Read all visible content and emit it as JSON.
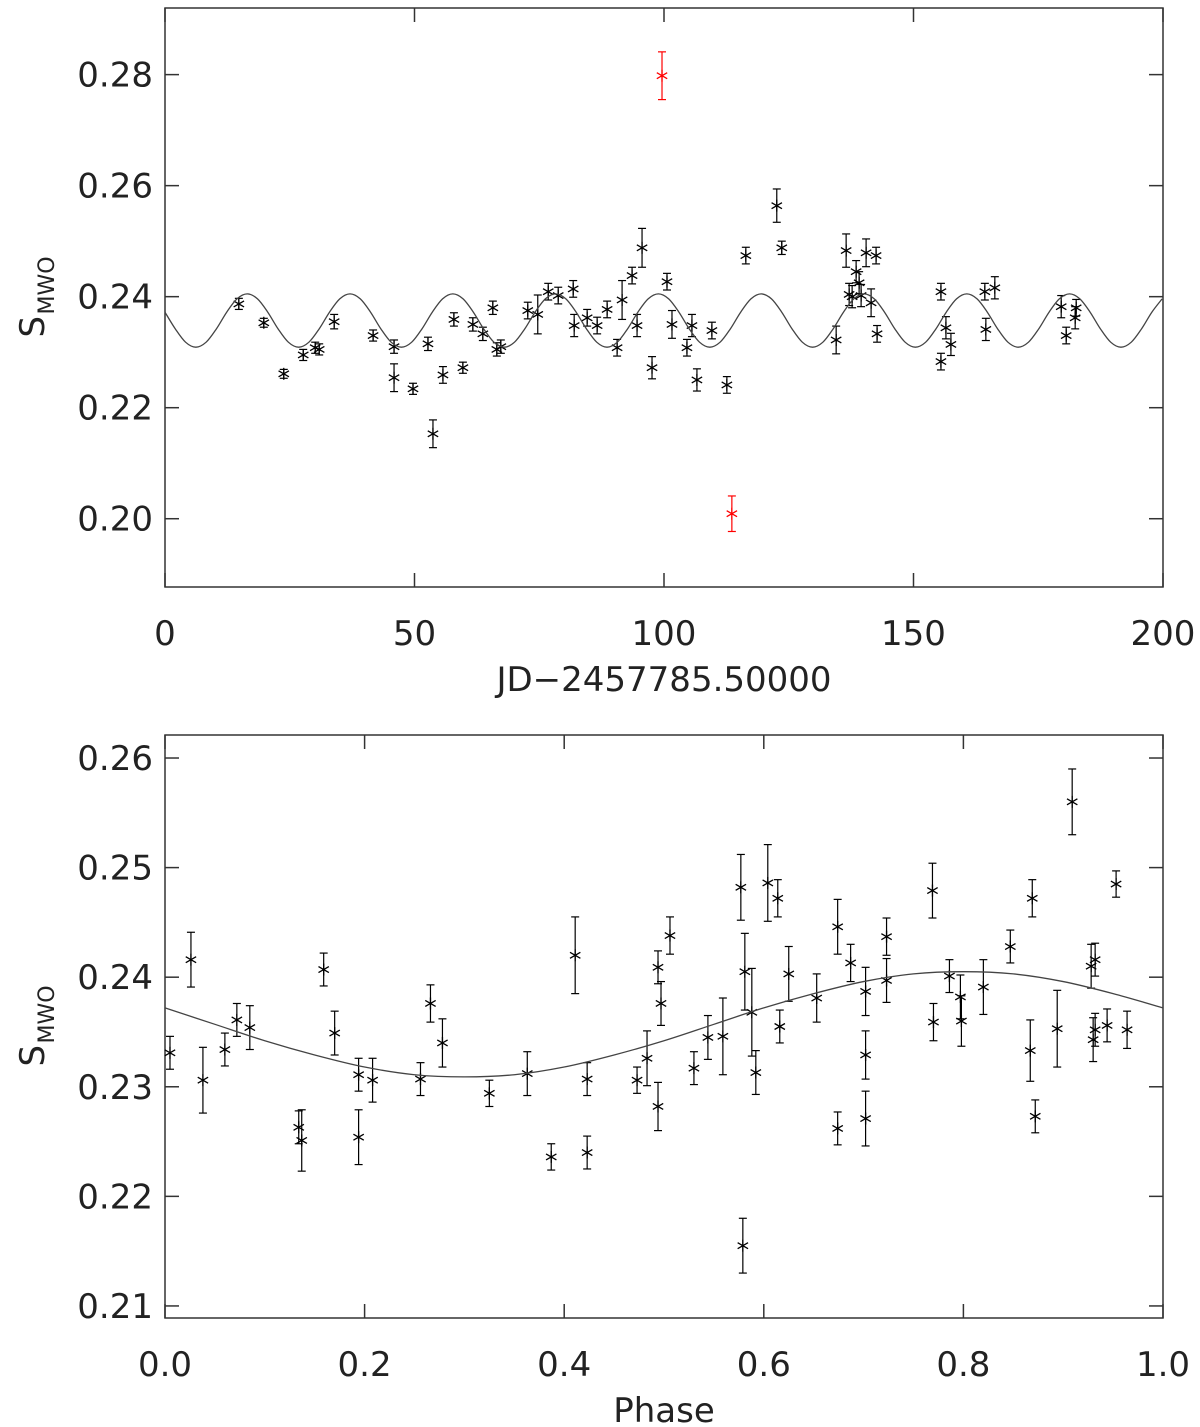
{
  "chart_data": [
    {
      "type": "scatter",
      "xlabel": "JD−2457785.50000",
      "ylabel": "S",
      "ylabel_subscript": "MWO",
      "xlim": [
        0,
        200
      ],
      "xticks": [
        0,
        50,
        100,
        150,
        200
      ],
      "ylim": [
        0.1877,
        0.292
      ],
      "yticks": [
        {
          "value": 0.2,
          "label": "0.20"
        },
        0.22,
        0.24,
        0.26,
        0.28
      ],
      "series": [
        {
          "type": "scatter",
          "color": "#000000",
          "x": [
            14.8,
            19.8,
            23.8,
            27.7,
            30.1,
            30.9,
            33.9,
            41.7,
            45.9,
            45.9,
            49.7,
            52.7,
            53.7,
            55.7,
            57.9,
            59.7,
            61.7,
            63.7,
            65.7,
            66.5,
            67.3,
            72.7,
            74.7,
            76.8,
            78.8,
            81.8,
            82.0,
            84.6,
            86.6,
            88.6,
            90.6,
            91.6,
            93.6,
            94.6,
            95.6,
            97.6,
            100.6,
            101.6,
            104.6,
            105.6,
            106.6,
            109.6,
            112.6,
            116.4,
            122.6,
            123.6,
            134.5,
            136.5,
            137.1,
            137.7,
            138.5,
            139.1,
            139.5,
            140.5,
            141.5,
            142.5,
            142.7,
            155.5,
            155.5,
            156.5,
            157.5,
            164.3,
            164.5,
            166.3,
            179.6,
            180.6,
            182.4,
            182.6
          ],
          "values": [
            0.2387,
            0.2353,
            0.2261,
            0.2295,
            0.2308,
            0.2305,
            0.2355,
            0.233,
            0.231,
            0.2254,
            0.2234,
            0.2315,
            0.2153,
            0.2259,
            0.2359,
            0.2272,
            0.235,
            0.2333,
            0.238,
            0.2305,
            0.231,
            0.2375,
            0.2368,
            0.2409,
            0.2402,
            0.2414,
            0.2348,
            0.2362,
            0.2348,
            0.2377,
            0.2308,
            0.2394,
            0.2438,
            0.2348,
            0.2488,
            0.2272,
            0.2427,
            0.235,
            0.2308,
            0.2348,
            0.225,
            0.2339,
            0.2241,
            0.2474,
            0.2564,
            0.2488,
            0.2322,
            0.2483,
            0.2404,
            0.24,
            0.2445,
            0.2425,
            0.2402,
            0.2479,
            0.2389,
            0.2474,
            0.2333,
            0.2409,
            0.2283,
            0.2344,
            0.2314,
            0.2409,
            0.2341,
            0.2416,
            0.2382,
            0.233,
            0.2362,
            0.238
          ],
          "errors": [
            0.001,
            0.0008,
            0.0008,
            0.001,
            0.001,
            0.001,
            0.0013,
            0.001,
            0.0012,
            0.0025,
            0.001,
            0.0012,
            0.0025,
            0.0015,
            0.0012,
            0.001,
            0.0012,
            0.0012,
            0.0012,
            0.0012,
            0.0012,
            0.0015,
            0.0035,
            0.0015,
            0.0015,
            0.0015,
            0.002,
            0.0015,
            0.0015,
            0.0015,
            0.0015,
            0.0035,
            0.0015,
            0.002,
            0.0035,
            0.002,
            0.0015,
            0.0025,
            0.0015,
            0.002,
            0.002,
            0.0015,
            0.0015,
            0.0015,
            0.003,
            0.0012,
            0.0025,
            0.003,
            0.002,
            0.002,
            0.002,
            0.002,
            0.002,
            0.0025,
            0.0025,
            0.0015,
            0.0015,
            0.0015,
            0.0015,
            0.002,
            0.002,
            0.0015,
            0.002,
            0.002,
            0.002,
            0.0015,
            0.002,
            0.0015
          ]
        },
        {
          "type": "scatter",
          "color": "#ff0000",
          "x": [
            99.6,
            113.6
          ],
          "values": [
            0.2798,
            0.2009
          ],
          "errors": [
            0.0043,
            0.0032
          ]
        },
        {
          "type": "line",
          "color": "#444444",
          "x": [
            0,
            2.06,
            4.12,
            6.18,
            8.24,
            10.3,
            12.36,
            14.42,
            16.48,
            18.54,
            20.6,
            22.66,
            24.72,
            26.78,
            28.84,
            30.9,
            32.96,
            35.02,
            37.08,
            39.14,
            41.2,
            43.26,
            45.32,
            47.38,
            49.44,
            51.5,
            53.56,
            55.62,
            57.68,
            59.74,
            61.8,
            63.86,
            65.92,
            67.98,
            70.04,
            72.1,
            74.16,
            76.22,
            78.28,
            80.34,
            82.4,
            84.46,
            86.52,
            88.58,
            90.64,
            92.7,
            94.76,
            96.82,
            98.88,
            100.94,
            103,
            105.06,
            107.12,
            109.18,
            111.24,
            113.3,
            115.36,
            117.42,
            119.48,
            121.54,
            123.6,
            125.66,
            127.72,
            129.78,
            131.84,
            133.9,
            135.96,
            138.02,
            140.08,
            142.14,
            144.2,
            146.26,
            148.32,
            150.38,
            152.44,
            154.5,
            156.56,
            158.62,
            160.68,
            162.74,
            164.8,
            166.86,
            168.92,
            170.98,
            173.04,
            175.1,
            177.16,
            179.22,
            181.28,
            183.34,
            185.4,
            187.46,
            189.52,
            191.58,
            193.64,
            195.7,
            197.76,
            199.82
          ],
          "values": [
            0.2372,
            0.2342,
            0.2318,
            0.2309,
            0.2318,
            0.2342,
            0.2372,
            0.2396,
            0.2405,
            0.2396,
            0.2372,
            0.2342,
            0.2318,
            0.2309,
            0.2318,
            0.2342,
            0.2372,
            0.2396,
            0.2405,
            0.2396,
            0.2372,
            0.2342,
            0.2318,
            0.2309,
            0.2318,
            0.2342,
            0.2372,
            0.2396,
            0.2405,
            0.2396,
            0.2372,
            0.2342,
            0.2318,
            0.2309,
            0.2318,
            0.2342,
            0.2372,
            0.2396,
            0.2405,
            0.2396,
            0.2372,
            0.2342,
            0.2318,
            0.2309,
            0.2318,
            0.2342,
            0.2372,
            0.2396,
            0.2405,
            0.2396,
            0.2372,
            0.2342,
            0.2318,
            0.2309,
            0.2318,
            0.2342,
            0.2372,
            0.2396,
            0.2405,
            0.2396,
            0.2372,
            0.2342,
            0.2318,
            0.2309,
            0.2318,
            0.2342,
            0.2372,
            0.2396,
            0.2405,
            0.2396,
            0.2372,
            0.2342,
            0.2318,
            0.2309,
            0.2318,
            0.2342,
            0.2372,
            0.2396,
            0.2405,
            0.2396,
            0.2372,
            0.2342,
            0.2318,
            0.2309,
            0.2318,
            0.2342,
            0.2372,
            0.2396,
            0.2405,
            0.2396,
            0.2372,
            0.2342,
            0.2318,
            0.2309,
            0.2318,
            0.2342,
            0.2372,
            0.2396
          ]
        }
      ]
    },
    {
      "type": "scatter",
      "xlabel": "Phase",
      "ylabel": "S",
      "ylabel_subscript": "MWO",
      "xlim": [
        0,
        1
      ],
      "xticks": [
        {
          "value": 0,
          "label": "0.0"
        },
        0.2,
        0.4,
        0.6,
        0.8,
        {
          "value": 1,
          "label": "1.0"
        }
      ],
      "ylim": [
        0.2089,
        0.2621
      ],
      "yticks": [
        0.21,
        0.22,
        0.23,
        0.24,
        0.25,
        0.26
      ],
      "series": [
        {
          "type": "scatter",
          "color": "#000000",
          "x": [
            0.005,
            0.026,
            0.038,
            0.06,
            0.072,
            0.085,
            0.134,
            0.137,
            0.159,
            0.17,
            0.194,
            0.194,
            0.208,
            0.256,
            0.266,
            0.278,
            0.325,
            0.363,
            0.387,
            0.411,
            0.423,
            0.423,
            0.473,
            0.483,
            0.494,
            0.494,
            0.497,
            0.506,
            0.53,
            0.544,
            0.559,
            0.577,
            0.579,
            0.581,
            0.588,
            0.592,
            0.604,
            0.614,
            0.616,
            0.625,
            0.653,
            0.674,
            0.674,
            0.687,
            0.702,
            0.702,
            0.702,
            0.723,
            0.723,
            0.769,
            0.77,
            0.786,
            0.797,
            0.798,
            0.82,
            0.847,
            0.867,
            0.869,
            0.872,
            0.894,
            0.909,
            0.928,
            0.93,
            0.932,
            0.932,
            0.944,
            0.953,
            0.964
          ],
          "values": [
            0.2331,
            0.2416,
            0.2306,
            0.2334,
            0.2361,
            0.2354,
            0.2263,
            0.2251,
            0.2407,
            0.2349,
            0.2311,
            0.2254,
            0.2306,
            0.2307,
            0.2376,
            0.234,
            0.2294,
            0.2312,
            0.2236,
            0.242,
            0.2307,
            0.224,
            0.2306,
            0.2326,
            0.2409,
            0.2282,
            0.2376,
            0.2438,
            0.2317,
            0.2345,
            0.2346,
            0.2482,
            0.2155,
            0.2405,
            0.2368,
            0.2313,
            0.2486,
            0.2472,
            0.2355,
            0.2403,
            0.2381,
            0.2446,
            0.2262,
            0.2413,
            0.2387,
            0.2329,
            0.2271,
            0.2437,
            0.2397,
            0.2479,
            0.2359,
            0.2401,
            0.2382,
            0.236,
            0.2391,
            0.2428,
            0.2333,
            0.2472,
            0.2273,
            0.2353,
            0.256,
            0.241,
            0.2343,
            0.2416,
            0.2352,
            0.2356,
            0.2485,
            0.2352
          ],
          "errors": [
            0.0015,
            0.0025,
            0.003,
            0.0015,
            0.0015,
            0.002,
            0.0015,
            0.0028,
            0.0015,
            0.002,
            0.0015,
            0.0025,
            0.002,
            0.0015,
            0.0017,
            0.0022,
            0.0012,
            0.002,
            0.0012,
            0.0035,
            0.0015,
            0.0015,
            0.0012,
            0.0025,
            0.0015,
            0.0022,
            0.002,
            0.0017,
            0.0015,
            0.002,
            0.0035,
            0.003,
            0.0025,
            0.0035,
            0.004,
            0.002,
            0.0035,
            0.0017,
            0.0015,
            0.0025,
            0.0022,
            0.0025,
            0.0015,
            0.0017,
            0.0022,
            0.0022,
            0.0025,
            0.0017,
            0.002,
            0.0025,
            0.0017,
            0.0015,
            0.002,
            0.0023,
            0.0025,
            0.0015,
            0.0028,
            0.0017,
            0.0015,
            0.0035,
            0.003,
            0.002,
            0.002,
            0.0015,
            0.0015,
            0.0015,
            0.0012,
            0.0017
          ]
        },
        {
          "type": "line",
          "color": "#444444",
          "x": [
            0,
            0.05,
            0.1,
            0.15,
            0.2,
            0.25,
            0.3,
            0.35,
            0.4,
            0.45,
            0.5,
            0.55,
            0.6,
            0.65,
            0.7,
            0.75,
            0.8,
            0.85,
            0.9,
            0.95,
            1
          ],
          "values": [
            0.2372,
            0.2357,
            0.2342,
            0.2329,
            0.2318,
            0.2311,
            0.2309,
            0.2311,
            0.2318,
            0.2329,
            0.2342,
            0.2357,
            0.2372,
            0.2385,
            0.2396,
            0.2403,
            0.2405,
            0.2403,
            0.2396,
            0.2385,
            0.2372
          ]
        }
      ]
    }
  ]
}
